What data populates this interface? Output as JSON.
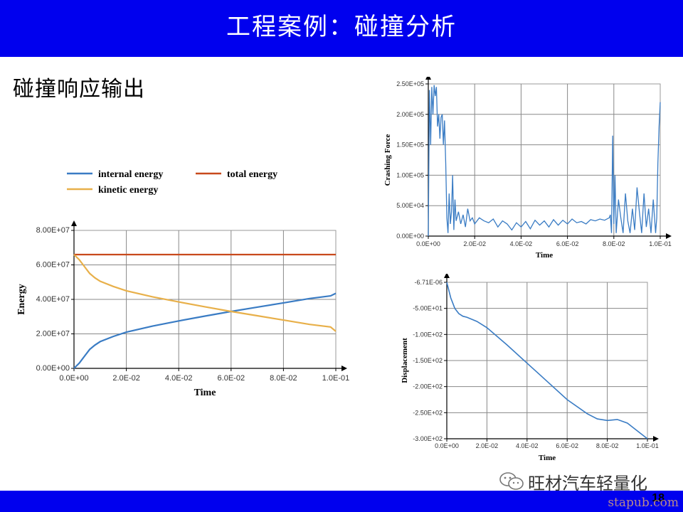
{
  "slide": {
    "title": "工程案例：碰撞分析",
    "subtitle": "碰撞响应输出",
    "page_number": "18",
    "brand": "旺材汽车轻量化",
    "watermark": "stapub.com",
    "header_color": "#0000ee"
  },
  "chart_data": [
    {
      "type": "line",
      "title": "",
      "xlabel": "Time",
      "ylabel": "Energy",
      "xlim": [
        0,
        0.1
      ],
      "ylim": [
        0,
        80000000
      ],
      "x_ticks": [
        "0.0E+00",
        "2.0E-02",
        "4.0E-02",
        "6.0E-02",
        "8.0E-02",
        "1.0E-01"
      ],
      "y_ticks": [
        "0.00E+00",
        "2.00E+07",
        "4.00E+07",
        "6.00E+07",
        "8.00E+07"
      ],
      "grid": true,
      "legend_position": "top",
      "series": [
        {
          "name": "internal energy",
          "color": "#3a7cc4",
          "x": [
            0,
            0.002,
            0.004,
            0.006,
            0.008,
            0.01,
            0.015,
            0.02,
            0.03,
            0.04,
            0.05,
            0.06,
            0.07,
            0.08,
            0.09,
            0.098,
            0.1
          ],
          "y": [
            0,
            3000000,
            7000000,
            11000000,
            13500000,
            15500000,
            18500000,
            21000000,
            24500000,
            27500000,
            30300000,
            33000000,
            35500000,
            38000000,
            40500000,
            42000000,
            43500000
          ]
        },
        {
          "name": "total energy",
          "color": "#c84a1c",
          "x": [
            0,
            0.1
          ],
          "y": [
            66000000,
            66000000
          ]
        },
        {
          "name": "kinetic energy",
          "color": "#e8b04a",
          "x": [
            0,
            0.002,
            0.004,
            0.006,
            0.008,
            0.01,
            0.015,
            0.02,
            0.03,
            0.04,
            0.05,
            0.06,
            0.07,
            0.08,
            0.09,
            0.098,
            0.1
          ],
          "y": [
            66000000,
            63000000,
            59000000,
            55000000,
            52500000,
            50500000,
            47500000,
            45000000,
            41500000,
            38500000,
            35700000,
            33000000,
            30500000,
            28000000,
            25500000,
            24000000,
            21500000
          ]
        }
      ]
    },
    {
      "type": "line",
      "title": "",
      "xlabel": "Time",
      "ylabel": "Crashing Force",
      "xlim": [
        0,
        0.1
      ],
      "ylim": [
        0,
        250000
      ],
      "x_ticks": [
        "0.0E+00",
        "2.0E-02",
        "4.0E-02",
        "6.0E-02",
        "8.0E-02",
        "1.0E-01"
      ],
      "y_ticks": [
        "0.00E+00",
        "5.00E+04",
        "1.00E+05",
        "1.50E+05",
        "2.00E+05",
        "2.50E+05"
      ],
      "grid": true,
      "series": [
        {
          "name": "",
          "color": "#3a7cc4",
          "x": [
            0,
            0.0005,
            0.001,
            0.0015,
            0.002,
            0.0025,
            0.003,
            0.0035,
            0.004,
            0.0045,
            0.005,
            0.0055,
            0.006,
            0.0065,
            0.007,
            0.0075,
            0.008,
            0.0085,
            0.009,
            0.0095,
            0.01,
            0.0105,
            0.011,
            0.0115,
            0.012,
            0.013,
            0.014,
            0.015,
            0.016,
            0.017,
            0.018,
            0.019,
            0.02,
            0.022,
            0.024,
            0.026,
            0.028,
            0.03,
            0.032,
            0.034,
            0.036,
            0.038,
            0.04,
            0.042,
            0.044,
            0.046,
            0.048,
            0.05,
            0.052,
            0.054,
            0.056,
            0.058,
            0.06,
            0.062,
            0.064,
            0.066,
            0.068,
            0.07,
            0.072,
            0.074,
            0.076,
            0.078,
            0.0785,
            0.079,
            0.0795,
            0.08,
            0.0805,
            0.081,
            0.082,
            0.083,
            0.084,
            0.085,
            0.086,
            0.087,
            0.088,
            0.089,
            0.09,
            0.091,
            0.092,
            0.093,
            0.094,
            0.095,
            0.096,
            0.097,
            0.098,
            0.0985,
            0.099,
            0.0995,
            0.1
          ],
          "y": [
            0,
            240000,
            150000,
            245000,
            200000,
            248000,
            230000,
            245000,
            180000,
            200000,
            160000,
            195000,
            200000,
            150000,
            190000,
            120000,
            30000,
            5000,
            70000,
            20000,
            40000,
            100000,
            10000,
            60000,
            25000,
            40000,
            20000,
            35000,
            15000,
            45000,
            25000,
            30000,
            20000,
            30000,
            25000,
            22000,
            28000,
            15000,
            25000,
            20000,
            10000,
            22000,
            15000,
            24000,
            12000,
            26000,
            18000,
            25000,
            15000,
            27000,
            18000,
            26000,
            20000,
            28000,
            22000,
            24000,
            20000,
            27000,
            25000,
            28000,
            26000,
            30000,
            35000,
            5000,
            165000,
            20000,
            100000,
            5000,
            60000,
            30000,
            5000,
            70000,
            25000,
            5000,
            45000,
            10000,
            80000,
            40000,
            5000,
            70000,
            15000,
            45000,
            5000,
            60000,
            5000,
            30000,
            120000,
            180000,
            220000
          ]
        }
      ]
    },
    {
      "type": "line",
      "title": "",
      "xlabel": "Time",
      "ylabel": "Displacement",
      "xlim": [
        0,
        0.1
      ],
      "ylim": [
        -300,
        0
      ],
      "x_ticks": [
        "0.0E+00",
        "2.0E-02",
        "4.0E-02",
        "6.0E-02",
        "8.0E-02",
        "1.0E-01"
      ],
      "y_ticks": [
        "-6.71E-06",
        "-5.00E+01",
        "-1.00E+02",
        "-1.50E+02",
        "-2.00E+02",
        "-2.50E+02",
        "-3.00E+02"
      ],
      "grid": true,
      "series": [
        {
          "name": "",
          "color": "#3a7cc4",
          "x": [
            0,
            0.002,
            0.004,
            0.006,
            0.008,
            0.01,
            0.015,
            0.02,
            0.03,
            0.04,
            0.05,
            0.06,
            0.07,
            0.075,
            0.08,
            0.085,
            0.09,
            0.095,
            0.1
          ],
          "y": [
            0,
            -30,
            -50,
            -60,
            -65,
            -67,
            -75,
            -87,
            -120,
            -155,
            -190,
            -225,
            -252,
            -262,
            -265,
            -263,
            -270,
            -285,
            -300
          ]
        }
      ]
    }
  ]
}
